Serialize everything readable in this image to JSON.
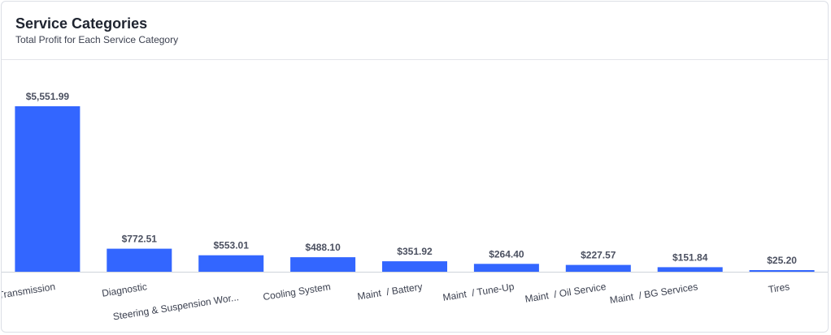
{
  "card": {
    "title": "Service Categories",
    "subtitle": "Total Profit for Each Service Category"
  },
  "colors": {
    "bar": "#3366ff",
    "axis": "#cfd3da"
  },
  "chart_data": {
    "type": "bar",
    "title": "Service Categories",
    "subtitle": "Total Profit for Each Service Category",
    "categories": [
      "Transmission",
      "Diagnostic",
      "Steering & Suspension Wor...",
      "Cooling System",
      "Maint  / Battery",
      "Maint  / Tune-Up",
      "Maint  / Oil Service",
      "Maint  / BG Services",
      "Tires"
    ],
    "values": [
      5551.99,
      772.51,
      553.01,
      488.1,
      351.92,
      264.4,
      227.57,
      151.84,
      25.2
    ],
    "value_labels": [
      "$5,551.99",
      "$772.51",
      "$553.01",
      "$488.10",
      "$351.92",
      "$264.40",
      "$227.57",
      "$151.84",
      "$25.20"
    ],
    "xlabel": "",
    "ylabel": "",
    "ylim": [
      0,
      5551.99
    ],
    "grid": false,
    "legend": "none"
  }
}
